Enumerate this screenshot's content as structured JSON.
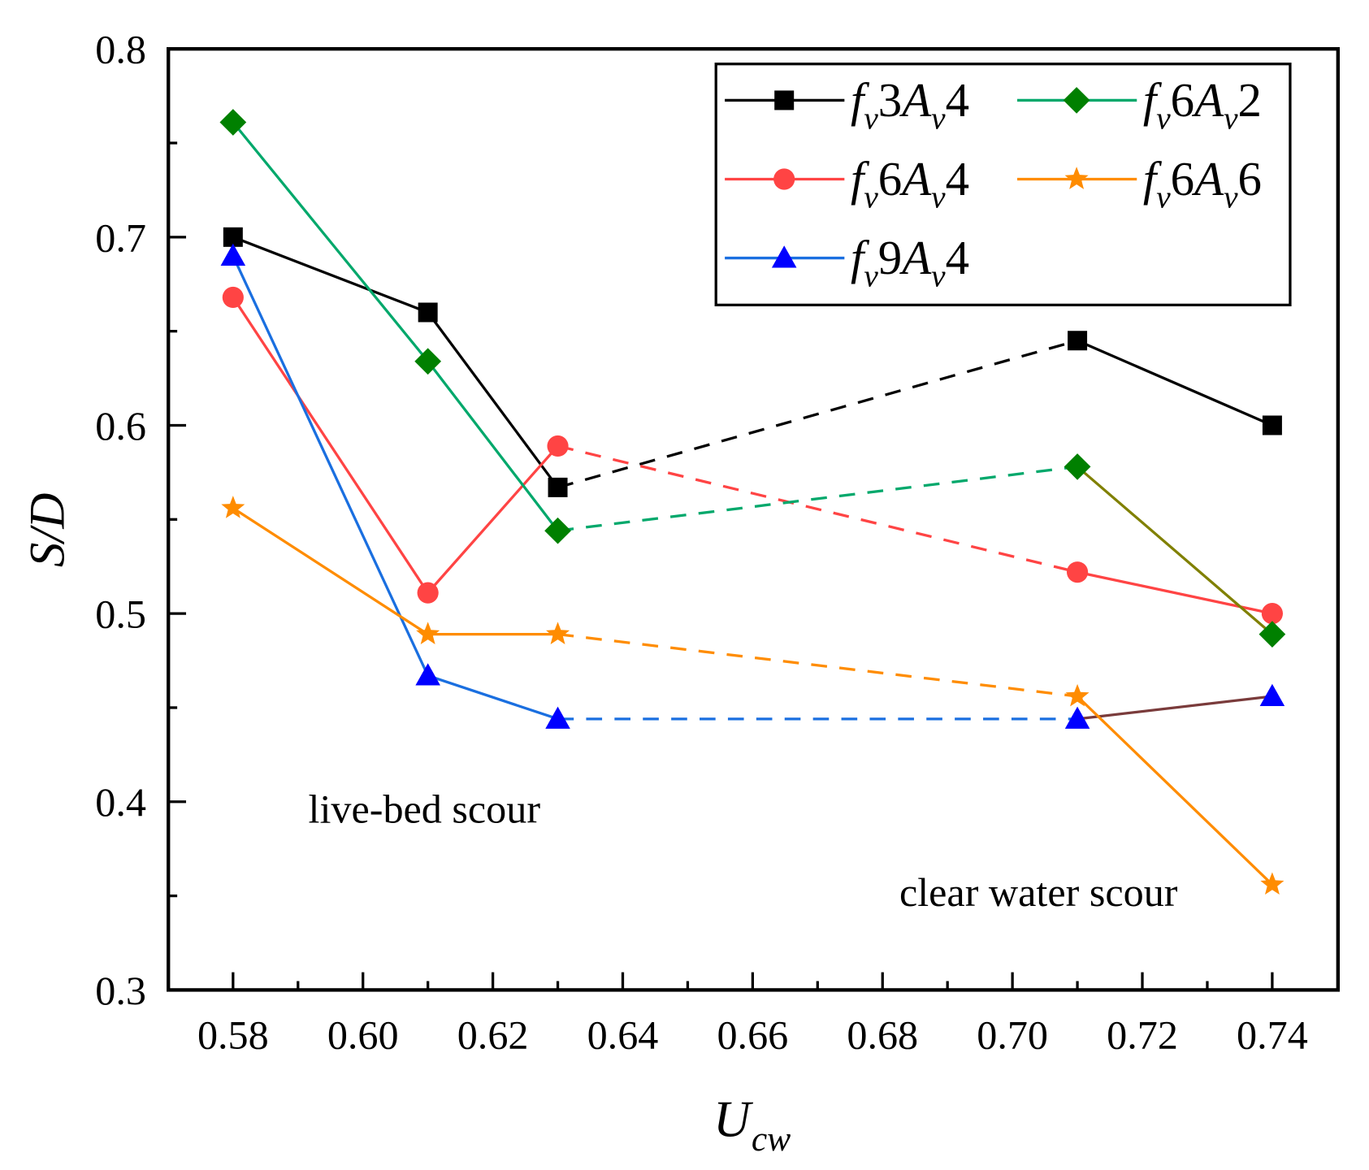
{
  "chart_data": {
    "type": "line",
    "xlabel": "U_cw",
    "ylabel": "S/D",
    "xlim": [
      0.57,
      0.75
    ],
    "ylim": [
      0.3,
      0.8
    ],
    "xticks": [
      "0.58",
      "0.60",
      "0.62",
      "0.64",
      "0.66",
      "0.68",
      "0.70",
      "0.72",
      "0.74"
    ],
    "yticks": [
      "0.3",
      "0.4",
      "0.5",
      "0.6",
      "0.7",
      "0.8"
    ],
    "grid": false,
    "legend_placement": "top-right",
    "x": [
      0.58,
      0.61,
      0.63,
      0.71,
      0.74
    ],
    "dashed_segment": [
      0.63,
      0.71
    ],
    "series": [
      {
        "name": "f_v3A_v4",
        "color": "#000000",
        "marker": "square",
        "values": [
          0.7,
          0.66,
          0.567,
          0.645,
          0.6
        ]
      },
      {
        "name": "f_v6A_v4",
        "color": "#ff4444",
        "marker": "circle",
        "values": [
          0.668,
          0.511,
          0.589,
          0.522,
          0.5
        ]
      },
      {
        "name": "f_v9A_v4",
        "color": "#1a6fe0",
        "marker_color": "#0000ff",
        "last_segment_color": "#7a3b3b",
        "marker": "triangle",
        "values": [
          0.69,
          0.467,
          0.444,
          0.444,
          0.456
        ]
      },
      {
        "name": "f_v6A_v2",
        "color": "#00a86b",
        "marker_color": "#008000",
        "last_segment_color": "#808000",
        "marker": "diamond",
        "values": [
          0.761,
          0.634,
          0.544,
          0.578,
          0.489
        ]
      },
      {
        "name": "f_v6A_v6",
        "color": "#ff8c00",
        "marker": "star",
        "values": [
          0.556,
          0.489,
          0.489,
          0.456,
          0.356
        ]
      }
    ],
    "annotations": [
      "live-bed scour",
      "clear water scour"
    ]
  }
}
